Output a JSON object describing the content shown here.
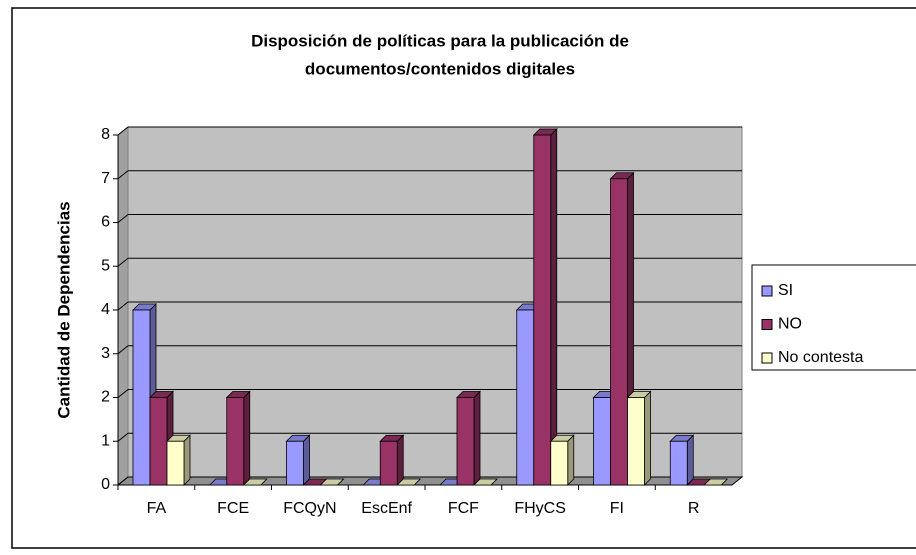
{
  "chart_data": {
    "type": "bar3d",
    "title": [
      "Disposición de políticas para la publicación de",
      "documentos/contenidos digitales"
    ],
    "y_label": "Cantidad de Dependencias",
    "categories": [
      "FA",
      "FCE",
      "FCQyN",
      "EscEnf",
      "FCF",
      "FHyCS",
      "FI",
      "R"
    ],
    "series": [
      {
        "name": "SI",
        "color": "#9999ff",
        "values": [
          4,
          0,
          1,
          0,
          0,
          4,
          2,
          1
        ]
      },
      {
        "name": "NO",
        "color": "#993366",
        "values": [
          2,
          2,
          0,
          1,
          2,
          8,
          7,
          0
        ]
      },
      {
        "name": "No contesta",
        "color": "#ffffcc",
        "values": [
          1,
          0,
          0,
          0,
          0,
          1,
          2,
          0
        ]
      }
    ],
    "ylim": [
      0,
      8
    ],
    "yticks": [
      0,
      1,
      2,
      3,
      4,
      5,
      6,
      7,
      8
    ],
    "grid": true,
    "legend": "right"
  }
}
